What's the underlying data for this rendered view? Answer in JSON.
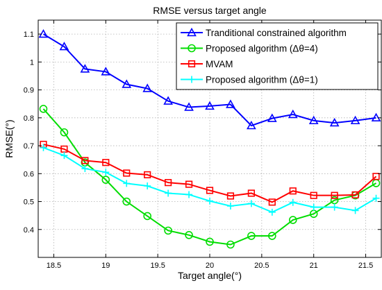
{
  "chart_data": {
    "type": "line",
    "title": "RMSE versus target angle",
    "xlabel": "Target angle(°)",
    "ylabel": "RMSE(°)",
    "xlim": [
      18.35,
      21.65
    ],
    "ylim": [
      0.3,
      1.15
    ],
    "xticks": [
      18.5,
      19,
      19.5,
      20,
      20.5,
      21,
      21.5
    ],
    "xtick_labels": [
      "18.5",
      "19",
      "19.5",
      "20",
      "20.5",
      "21",
      "21.5"
    ],
    "yticks": [
      0.4,
      0.5,
      0.6,
      0.7,
      0.8,
      0.9,
      1.0,
      1.1
    ],
    "ytick_labels": [
      "0.4",
      "0.5",
      "0.6",
      "0.7",
      "0.8",
      "0.9",
      "1",
      "1.1"
    ],
    "grid": true,
    "legend_position": "top-right",
    "x": [
      18.4,
      18.6,
      18.8,
      19.0,
      19.2,
      19.4,
      19.6,
      19.8,
      20.0,
      20.2,
      20.4,
      20.6,
      20.8,
      21.0,
      21.2,
      21.4,
      21.6
    ],
    "series": [
      {
        "name": "Tranditional constrained algorithm",
        "color": "#0000ff",
        "marker": "triangle",
        "values": [
          1.1,
          1.055,
          0.975,
          0.965,
          0.92,
          0.905,
          0.86,
          0.838,
          0.842,
          0.848,
          0.772,
          0.798,
          0.812,
          0.79,
          0.782,
          0.79,
          0.8
        ]
      },
      {
        "name": "Proposed algorithm (Δθ=4)",
        "color": "#00dd00",
        "marker": "circle",
        "values": [
          0.832,
          0.748,
          0.64,
          0.578,
          0.5,
          0.448,
          0.396,
          0.38,
          0.356,
          0.346,
          0.377,
          0.377,
          0.434,
          0.456,
          0.505,
          0.522,
          0.566
        ]
      },
      {
        "name": "MVAM",
        "color": "#ff0000",
        "marker": "square",
        "values": [
          0.705,
          0.688,
          0.647,
          0.64,
          0.602,
          0.596,
          0.568,
          0.562,
          0.54,
          0.52,
          0.53,
          0.498,
          0.538,
          0.522,
          0.522,
          0.524,
          0.59
        ]
      },
      {
        "name": "Proposed algorithm (Δθ=1)",
        "color": "#00ffff",
        "marker": "plus",
        "values": [
          0.693,
          0.665,
          0.618,
          0.605,
          0.565,
          0.556,
          0.53,
          0.525,
          0.502,
          0.484,
          0.493,
          0.462,
          0.497,
          0.48,
          0.48,
          0.468,
          0.512
        ]
      }
    ]
  }
}
